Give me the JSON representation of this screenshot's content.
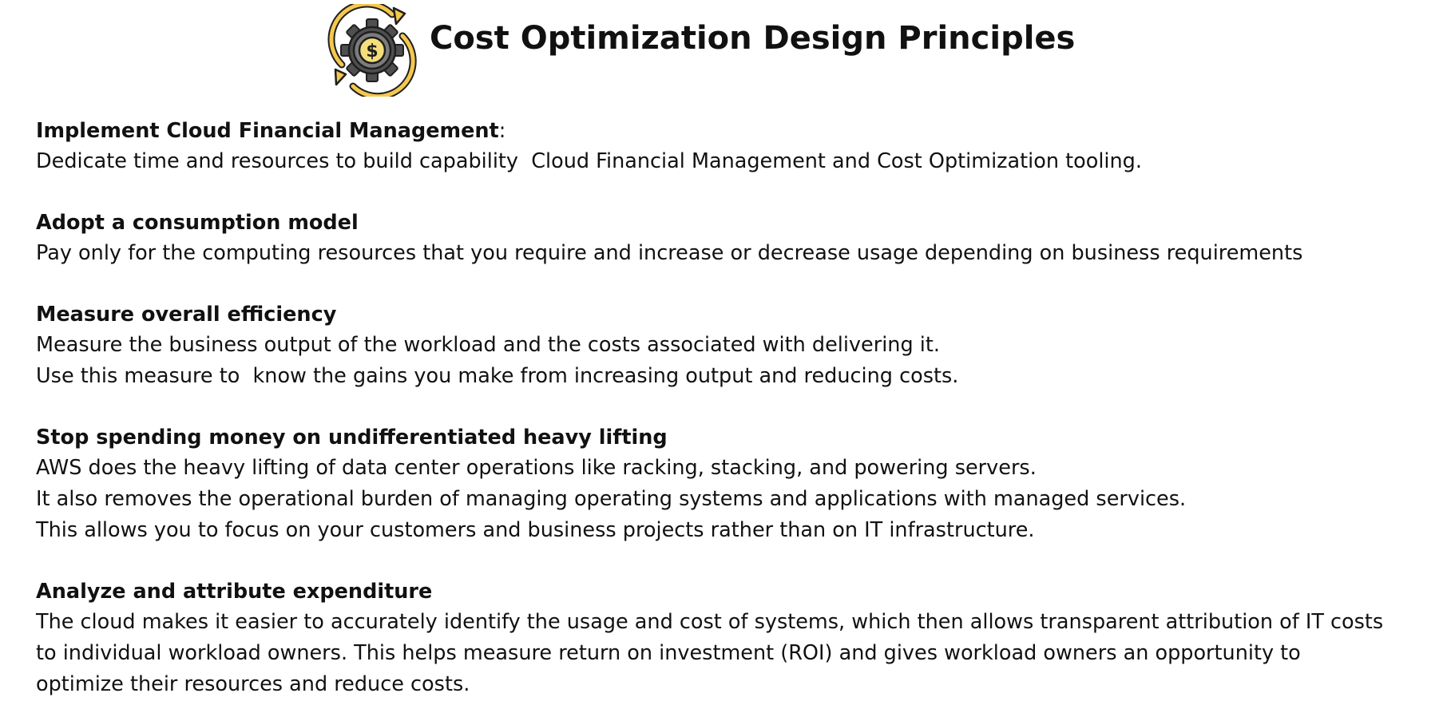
{
  "header": {
    "title": "Cost Optimization Design Principles",
    "icon": "gear-dollar-cycle-icon"
  },
  "colors": {
    "gear": "#4f4f4f",
    "gear_inner": "#7c7c7c",
    "coin": "#f4de7b",
    "accent_yellow": "#f5c84c",
    "text": "#111111"
  },
  "principles": [
    {
      "heading": "Implement Cloud Financial Management",
      "heading_suffix": ":",
      "lines": [
        "Dedicate time and resources to build capability  Cloud Financial Management and Cost Optimization tooling."
      ]
    },
    {
      "heading": "Adopt a consumption model",
      "heading_suffix": "",
      "lines": [
        "Pay only for the computing resources that you require and increase or decrease usage depending on business requirements"
      ]
    },
    {
      "heading": "Measure overall efficiency",
      "heading_suffix": "",
      "lines": [
        "Measure the business output of the workload and the costs associated with delivering it.",
        "Use this measure to  know the gains you make from increasing output and reducing costs."
      ]
    },
    {
      "heading": "Stop spending money on undifferentiated heavy lifting",
      "heading_suffix": "",
      "lines": [
        "AWS does the heavy lifting of data center operations like racking, stacking, and powering servers.",
        "It also removes the operational burden of managing operating systems and applications with managed services.",
        "This allows you to focus on your customers and business projects rather than on IT infrastructure."
      ]
    },
    {
      "heading": "Analyze and attribute expenditure",
      "heading_suffix": "",
      "lines": [
        "The cloud makes it easier to accurately identify the usage and cost of systems, which then allows transparent attribution of IT costs",
        "to individual workload owners. This helps measure return on investment (ROI) and gives workload owners an opportunity to",
        "optimize their resources and reduce costs."
      ]
    }
  ]
}
